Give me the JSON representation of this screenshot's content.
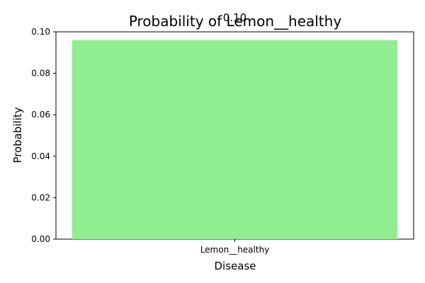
{
  "chart_data": {
    "type": "bar",
    "title": "Probability of Lemon__healthy",
    "xlabel": "Disease",
    "ylabel": "Probability",
    "categories": [
      "Lemon__healthy"
    ],
    "values": [
      0.096
    ],
    "data_labels": [
      "0.10"
    ],
    "ylim": [
      0,
      0.1
    ],
    "yticks": [
      "0.00",
      "0.02",
      "0.04",
      "0.06",
      "0.08",
      "0.10"
    ],
    "ytick_values": [
      0,
      0.02,
      0.04,
      0.06,
      0.08,
      0.1
    ],
    "bar_color": "#90ee90",
    "grid": false,
    "legend": "none"
  }
}
